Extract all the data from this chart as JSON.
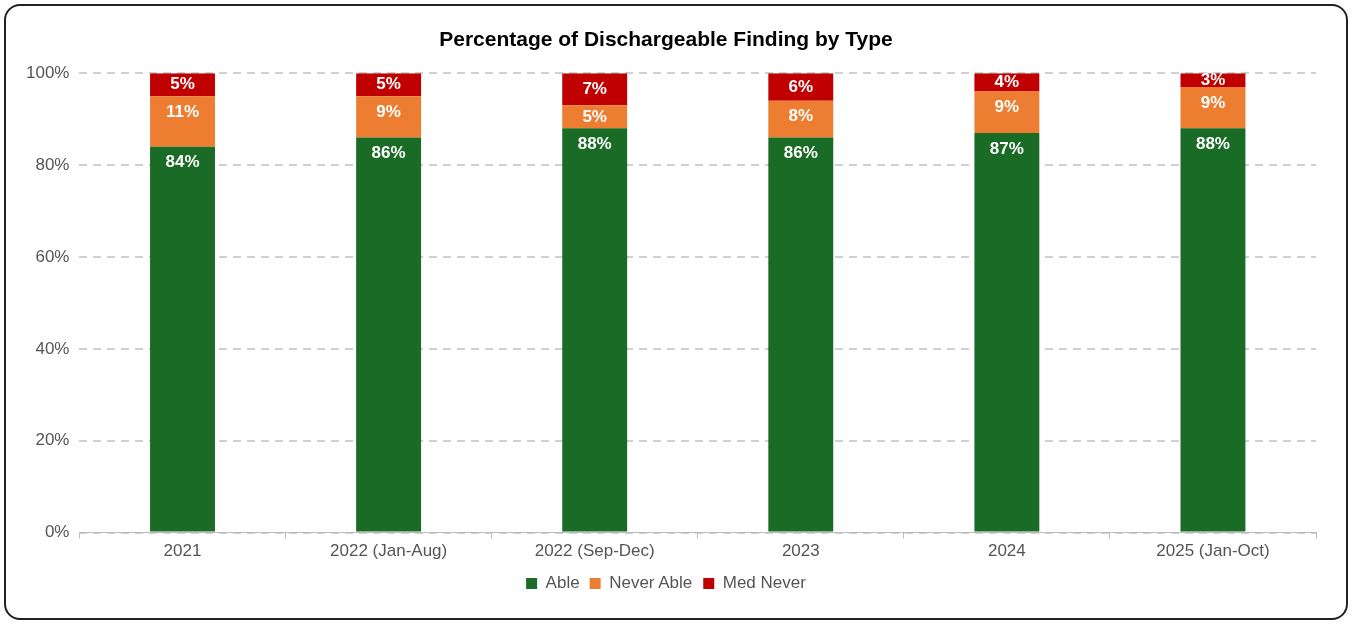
{
  "chart_data": {
    "type": "bar",
    "title": "Percentage of Dischargeable Finding by Type",
    "categories": [
      "2021",
      "2022 (Jan-Aug)",
      "2022 (Sep-Dec)",
      "2023",
      "2024",
      "2025 (Jan-Oct)"
    ],
    "stacked": true,
    "ylim": [
      0,
      100
    ],
    "yticks": [
      {
        "value": 0,
        "label": "0%"
      },
      {
        "value": 20,
        "label": "20%"
      },
      {
        "value": 40,
        "label": "40%"
      },
      {
        "value": 60,
        "label": "60%"
      },
      {
        "value": 80,
        "label": "80%"
      },
      {
        "value": 100,
        "label": "100%"
      }
    ],
    "grid": "y",
    "legend": "bottom",
    "series": [
      {
        "name": "Able",
        "color": "#1a6b25",
        "values": [
          84,
          86,
          88,
          86,
          87,
          88
        ],
        "value_labels": [
          "84%",
          "86%",
          "88%",
          "86%",
          "87%",
          "88%"
        ]
      },
      {
        "name": "Never Able",
        "color": "#ed7d31",
        "values": [
          11,
          9,
          5,
          8,
          9,
          9
        ],
        "value_labels": [
          "11%",
          "9%",
          "5%",
          "8%",
          "9%",
          "9%"
        ]
      },
      {
        "name": "Med Never",
        "color": "#c00000",
        "values": [
          5,
          5,
          7,
          6,
          4,
          3
        ],
        "value_labels": [
          "5%",
          "5%",
          "7%",
          "6%",
          "4%",
          "3%"
        ]
      }
    ]
  }
}
